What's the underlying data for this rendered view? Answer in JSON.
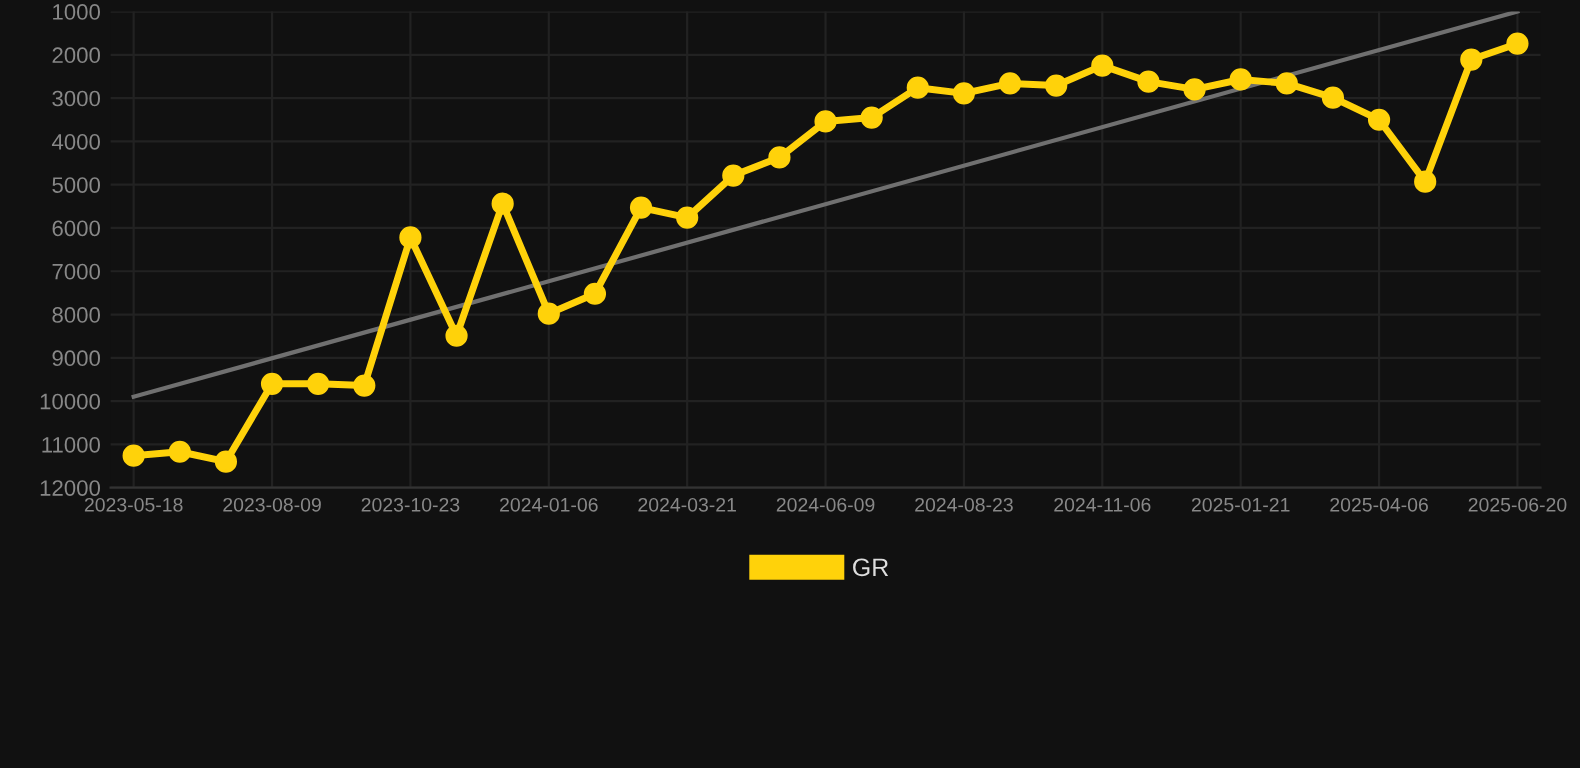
{
  "chart_data": {
    "type": "line",
    "categories": [
      "2023-05-18",
      null,
      null,
      "2023-08-09",
      null,
      null,
      "2023-10-23",
      null,
      null,
      "2024-01-06",
      null,
      null,
      "2024-03-21",
      null,
      null,
      "2024-06-09",
      null,
      null,
      "2024-08-23",
      null,
      null,
      "2024-11-06",
      null,
      null,
      "2025-01-21",
      null,
      null,
      "2025-04-06",
      null,
      null,
      "2025-06-20"
    ],
    "series": [
      {
        "name": "GR",
        "color": "#ffd20a",
        "marker": "circle",
        "values": [
          11260,
          11170,
          11400,
          9600,
          9600,
          9640,
          6220,
          8490,
          5440,
          7980,
          7520,
          5530,
          5760,
          4790,
          4370,
          3540,
          3450,
          2760,
          2890,
          2660,
          2710,
          2250,
          2620,
          2800,
          2570,
          2660,
          2990,
          3500,
          4930,
          2110,
          1740
        ]
      },
      {
        "color": "#707070",
        "marker": "none",
        "values": [
          9900,
          null,
          null,
          null,
          null,
          null,
          null,
          null,
          null,
          null,
          null,
          null,
          null,
          null,
          null,
          null,
          null,
          null,
          null,
          null,
          null,
          null,
          null,
          null,
          null,
          null,
          null,
          null,
          null,
          null,
          1000
        ]
      }
    ],
    "ylim": [
      12000,
      1000
    ],
    "yticks": [
      1000,
      2000,
      3000,
      4000,
      5000,
      6000,
      7000,
      8000,
      9000,
      10000,
      11000,
      12000
    ],
    "grid": true,
    "legend": "bottom"
  }
}
